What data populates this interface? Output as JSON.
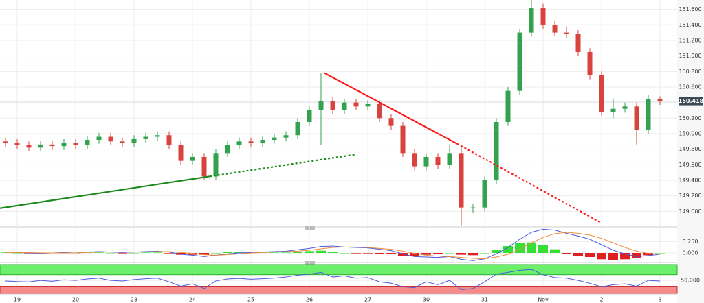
{
  "chart_data": [
    {
      "type": "candlestick",
      "x": [
        -0.2,
        0,
        0.2,
        0.4,
        0.6,
        0.8,
        1,
        1.2,
        1.4,
        1.6,
        1.8,
        2,
        2.2,
        2.4,
        2.6,
        2.8,
        3,
        3.2,
        3.4,
        3.6,
        3.8,
        4,
        4.2,
        4.4,
        4.6,
        4.8,
        5,
        5.2,
        5.4,
        5.6,
        5.8,
        6,
        6.2,
        6.4,
        6.6,
        6.8,
        7,
        7.2,
        7.4,
        7.6,
        7.8,
        8,
        8.2,
        8.4,
        8.6,
        8.8,
        9,
        9.2,
        9.4,
        9.6,
        9.8,
        10,
        10.2,
        10.4,
        10.6,
        10.8,
        11
      ],
      "open": [
        149.9,
        149.88,
        149.85,
        149.82,
        149.86,
        149.84,
        149.88,
        149.85,
        149.92,
        149.96,
        149.9,
        149.88,
        149.93,
        149.96,
        149.98,
        149.85,
        149.65,
        149.7,
        149.45,
        149.75,
        149.85,
        149.9,
        149.88,
        149.92,
        149.95,
        149.98,
        150.15,
        150.3,
        150.42,
        150.3,
        150.4,
        150.35,
        150.38,
        150.2,
        150.1,
        149.75,
        149.58,
        149.7,
        149.6,
        149.75,
        149.05,
        149.05,
        149.4,
        150.15,
        150.55,
        151.3,
        151.62,
        151.4,
        151.3,
        151.28,
        151.05,
        150.75,
        150.28,
        150.32,
        150.35,
        150.05,
        150.45
      ],
      "high": [
        149.95,
        149.93,
        149.9,
        149.91,
        149.91,
        149.93,
        149.93,
        149.97,
        150.01,
        150.01,
        149.95,
        149.98,
        150.01,
        150.03,
        150.03,
        149.9,
        149.75,
        149.75,
        149.8,
        149.9,
        149.95,
        149.95,
        149.97,
        150,
        150.03,
        150.2,
        150.35,
        150.78,
        150.47,
        150.45,
        150.45,
        150.43,
        150.43,
        150.25,
        150.15,
        149.8,
        149.75,
        149.75,
        149.85,
        149.85,
        149.1,
        149.45,
        150.2,
        150.6,
        151.35,
        151.72,
        151.67,
        151.45,
        151.38,
        151.33,
        151.1,
        150.8,
        150.45,
        150.4,
        150.4,
        150.5,
        150.48
      ],
      "low": [
        149.83,
        149.8,
        149.77,
        149.78,
        149.79,
        149.79,
        149.8,
        149.8,
        149.87,
        149.85,
        149.83,
        149.83,
        149.88,
        149.91,
        149.8,
        149.6,
        149.6,
        149.4,
        149.4,
        149.7,
        149.8,
        149.83,
        149.83,
        149.87,
        149.9,
        149.93,
        150.1,
        149.85,
        150.25,
        150.25,
        150.3,
        150.3,
        150.15,
        150.05,
        149.7,
        149.53,
        149.53,
        149.55,
        149.55,
        148.82,
        148.98,
        149,
        149.35,
        150.1,
        150.5,
        151.25,
        151.35,
        151.25,
        151.23,
        151,
        150.7,
        150.23,
        150.2,
        150.27,
        149.85,
        150,
        150.37
      ],
      "close": [
        149.88,
        149.85,
        149.82,
        149.86,
        149.84,
        149.88,
        149.85,
        149.92,
        149.96,
        149.9,
        149.88,
        149.93,
        149.96,
        149.98,
        149.85,
        149.65,
        149.7,
        149.45,
        149.75,
        149.85,
        149.9,
        149.88,
        149.92,
        149.95,
        149.98,
        150.15,
        150.3,
        150.42,
        150.3,
        150.4,
        150.35,
        150.38,
        150.2,
        150.1,
        149.75,
        149.58,
        149.7,
        149.6,
        149.75,
        149.05,
        149.05,
        149.4,
        150.15,
        150.55,
        151.3,
        151.62,
        151.4,
        151.3,
        151.28,
        151.05,
        150.75,
        150.28,
        150.32,
        150.35,
        150.05,
        150.45,
        150.42
      ],
      "color_up": "#33a24f",
      "color_down": "#d9433e",
      "xlim": [
        -0.294,
        11.294
      ],
      "xticks": [
        {
          "value": 0,
          "label": "19"
        },
        {
          "value": 1,
          "label": "20"
        },
        {
          "value": 2,
          "label": "23"
        },
        {
          "value": 3,
          "label": "24"
        },
        {
          "value": 4,
          "label": "25"
        },
        {
          "value": 5,
          "label": "26"
        },
        {
          "value": 6,
          "label": "27"
        },
        {
          "value": 7,
          "label": "30"
        },
        {
          "value": 8,
          "label": "31"
        },
        {
          "value": 9,
          "label": "Nov"
        },
        {
          "value": 10,
          "label": "2"
        },
        {
          "value": 11,
          "label": "3"
        }
      ],
      "ylim": [
        148.8,
        151.72
      ],
      "yticks": [
        {
          "value": 149,
          "label": "149.000"
        },
        {
          "value": 149.2,
          "label": "149.200"
        },
        {
          "value": 149.4,
          "label": "149.400"
        },
        {
          "value": 149.6,
          "label": "149.600"
        },
        {
          "value": 149.8,
          "label": "149.800"
        },
        {
          "value": 150,
          "label": "150.000"
        },
        {
          "value": 150.2,
          "label": "150.200"
        },
        {
          "value": 150.4,
          "label": "150.400"
        },
        {
          "value": 150.6,
          "label": "150.600"
        },
        {
          "value": 150.8,
          "label": "150.800"
        },
        {
          "value": 151,
          "label": "151.000"
        },
        {
          "value": 151.2,
          "label": "151.200"
        },
        {
          "value": 151.4,
          "label": "151.400"
        },
        {
          "value": 151.6,
          "label": "151.600"
        }
      ],
      "grid": true,
      "last_price": 150.418,
      "trendlines": [
        {
          "color": "#1a8a1a",
          "dashed": false,
          "x": [
            -0.294,
            3.294
          ],
          "y": [
            149.04,
            149.45
          ]
        },
        {
          "color": "#1a8a1a",
          "dashed": true,
          "x": [
            3.294,
            5.776
          ],
          "y": [
            149.45,
            149.73
          ]
        },
        {
          "color": "#ff1a1a",
          "dashed": false,
          "x": [
            5.259,
            7.529
          ],
          "y": [
            150.78,
            149.87
          ]
        },
        {
          "color": "#ff1a1a",
          "dashed": true,
          "x": [
            7.529,
            10.0
          ],
          "y": [
            149.87,
            148.85
          ]
        }
      ]
    },
    {
      "type": "macd",
      "x": [
        -0.2,
        0,
        0.2,
        0.4,
        0.6,
        0.8,
        1,
        1.2,
        1.4,
        1.6,
        1.8,
        2,
        2.2,
        2.4,
        2.6,
        2.8,
        3,
        3.2,
        3.4,
        3.6,
        3.8,
        4,
        4.2,
        4.4,
        4.6,
        4.8,
        5,
        5.2,
        5.4,
        5.6,
        5.8,
        6,
        6.2,
        6.4,
        6.6,
        6.8,
        7,
        7.2,
        7.4,
        7.6,
        7.8,
        8,
        8.2,
        8.4,
        8.6,
        8.8,
        9,
        9.2,
        9.4,
        9.6,
        9.8,
        10,
        10.2,
        10.4,
        10.6,
        10.8,
        11
      ],
      "ylim": [
        -0.18,
        0.54
      ],
      "yticks": [
        {
          "value": 0,
          "label": "0.000"
        },
        {
          "value": 0.25,
          "label": "0.250"
        }
      ],
      "series": [
        {
          "style": "histogram",
          "color_up": "#33e033",
          "color_down": "#e02020",
          "values": [
            0.01,
            0,
            -0.01,
            -0.01,
            0,
            0.01,
            0,
            0.01,
            0.01,
            0,
            -0.01,
            0,
            0.01,
            0.01,
            -0.01,
            -0.04,
            -0.04,
            -0.04,
            0,
            0.02,
            0.02,
            0.01,
            0.01,
            0.01,
            0.01,
            0.03,
            0.04,
            0.05,
            0.03,
            0,
            -0.01,
            -0.01,
            -0.02,
            -0.03,
            -0.06,
            -0.07,
            -0.04,
            -0.03,
            0,
            -0.04,
            -0.05,
            0,
            0.07,
            0.15,
            0.22,
            0.23,
            0.18,
            0.08,
            -0.02,
            -0.06,
            -0.09,
            -0.14,
            -0.16,
            -0.14,
            -0.12,
            -0.05,
            0
          ]
        },
        {
          "style": "line",
          "color": "#4a5ae0",
          "values": [
            0.02,
            0.01,
            0,
            -0.01,
            0,
            0.01,
            0,
            0.02,
            0.03,
            0.02,
            0.01,
            0.02,
            0.03,
            0.04,
            0.02,
            -0.03,
            -0.05,
            -0.08,
            -0.05,
            -0.02,
            0,
            0.01,
            0.02,
            0.03,
            0.04,
            0.07,
            0.1,
            0.14,
            0.15,
            0.13,
            0.12,
            0.11,
            0.08,
            0.05,
            -0.02,
            -0.08,
            -0.09,
            -0.1,
            -0.08,
            -0.14,
            -0.17,
            -0.13,
            -0.02,
            0.12,
            0.3,
            0.45,
            0.52,
            0.5,
            0.43,
            0.37,
            0.3,
            0.18,
            0.06,
            -0.02,
            -0.08,
            -0.06,
            -0.03
          ]
        },
        {
          "style": "line",
          "color": "#f08a3c",
          "values": [
            0.01,
            0.01,
            0.01,
            0,
            0,
            0,
            0,
            0.01,
            0.02,
            0.02,
            0.02,
            0.02,
            0.02,
            0.03,
            0.03,
            0.01,
            -0.01,
            -0.04,
            -0.05,
            -0.04,
            -0.02,
            0,
            0.01,
            0.02,
            0.03,
            0.04,
            0.06,
            0.09,
            0.12,
            0.13,
            0.13,
            0.12,
            0.1,
            0.08,
            0.04,
            -0.01,
            -0.05,
            -0.07,
            -0.08,
            -0.1,
            -0.12,
            -0.13,
            -0.09,
            -0.03,
            0.08,
            0.22,
            0.34,
            0.42,
            0.45,
            0.43,
            0.39,
            0.32,
            0.22,
            0.12,
            0.04,
            -0.01,
            -0.03
          ]
        }
      ]
    },
    {
      "type": "line",
      "x": [
        -0.2,
        0,
        0.2,
        0.4,
        0.6,
        0.8,
        1,
        1.2,
        1.4,
        1.6,
        1.8,
        2,
        2.2,
        2.4,
        2.6,
        2.8,
        3,
        3.2,
        3.4,
        3.6,
        3.8,
        4,
        4.2,
        4.4,
        4.6,
        4.8,
        5,
        5.2,
        5.4,
        5.6,
        5.8,
        6,
        6.2,
        6.4,
        6.6,
        6.8,
        7,
        7.2,
        7.4,
        7.6,
        7.8,
        8,
        8.2,
        8.4,
        8.6,
        8.8,
        9,
        9.2,
        9.4,
        9.6,
        9.8,
        10,
        10.2,
        10.4,
        10.6,
        10.8,
        11
      ],
      "ylim": [
        5,
        105
      ],
      "yticks": [
        {
          "value": 50,
          "label": "50.000"
        }
      ],
      "upper_band": 70,
      "lower_band": 30,
      "upper_color": "#6cf06c",
      "lower_color": "#f58a8a",
      "series": [
        {
          "color": "#4a5ae0",
          "values": [
            48,
            46,
            45,
            50,
            47,
            52,
            50,
            55,
            58,
            50,
            48,
            53,
            56,
            58,
            45,
            30,
            38,
            22,
            48,
            55,
            57,
            54,
            56,
            58,
            62,
            68,
            72,
            78,
            62,
            66,
            58,
            60,
            45,
            40,
            28,
            25,
            45,
            35,
            50,
            18,
            22,
            45,
            72,
            78,
            85,
            88,
            70,
            60,
            58,
            50,
            40,
            28,
            35,
            38,
            30,
            50,
            48
          ]
        }
      ]
    }
  ]
}
